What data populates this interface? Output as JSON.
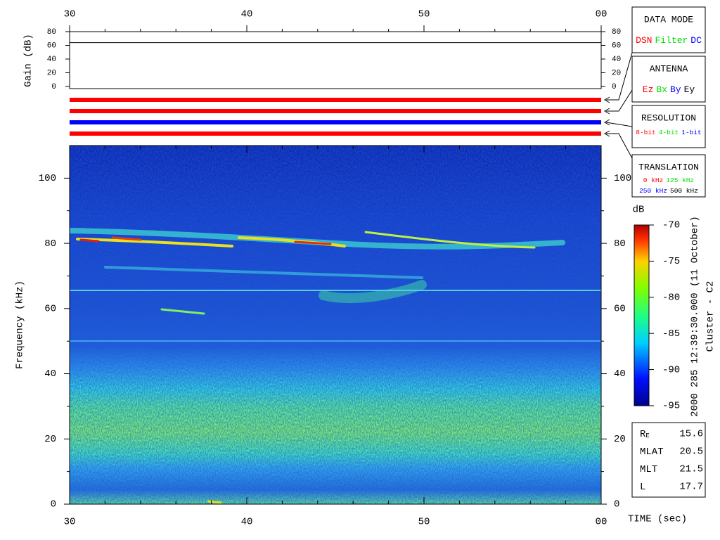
{
  "chart_data": [
    {
      "type": "line",
      "ylabel": "Gain (dB)",
      "xlim": [
        30,
        60
      ],
      "xticks": [
        30,
        40,
        50,
        {
          "value": 60,
          "label": "00"
        }
      ],
      "xminorticks": [
        32,
        34,
        36,
        38,
        42,
        44,
        46,
        48,
        52,
        54,
        56,
        58
      ],
      "ylim": [
        0,
        80
      ],
      "yticks": [
        0,
        20,
        40,
        60,
        80
      ],
      "x": [
        30,
        60
      ],
      "series": [
        {
          "color": "#000000",
          "values": [
            64,
            64
          ]
        }
      ],
      "mode_bars": [
        "#ff0000",
        "#ff0000",
        "#0000ff",
        "#ff0000"
      ]
    },
    {
      "type": "heatmap",
      "ylabel": "Frequency (kHz)",
      "xlabel": "TIME (sec)",
      "xlim": [
        30,
        60
      ],
      "xticks": [
        30,
        40,
        50,
        {
          "value": 60,
          "label": "00"
        }
      ],
      "xminorticks": [
        32,
        34,
        36,
        38,
        42,
        44,
        46,
        48,
        52,
        54,
        56,
        58
      ],
      "ylim": [
        0,
        110
      ],
      "yticks": [
        0,
        20,
        40,
        60,
        80,
        100
      ],
      "yminorticks": [
        10,
        30,
        50,
        70,
        90
      ],
      "colorbar": {
        "label": "dB",
        "zlim": [
          -95,
          -70
        ],
        "zticks": [
          -95,
          -90,
          -85,
          -80,
          -75,
          -70
        ]
      }
    }
  ],
  "legend_boxes": [
    {
      "title": "DATA MODE",
      "rows": [
        [
          {
            "text": "DSN",
            "color": "#ff0000"
          },
          {
            "text": "Filter",
            "color": "#00dd00"
          },
          {
            "text": "DC",
            "color": "#0000ff"
          }
        ]
      ]
    },
    {
      "title": "ANTENNA",
      "rows": [
        [
          {
            "text": "Ez",
            "color": "#ff0000"
          },
          {
            "text": "Bx",
            "color": "#00dd00"
          },
          {
            "text": "By",
            "color": "#0000ff"
          },
          {
            "text": "Ey",
            "color": "#000000"
          }
        ]
      ]
    },
    {
      "title": "RESOLUTION",
      "rows": [
        [
          {
            "text": "8-bit",
            "color": "#ff0000"
          },
          {
            "text": "4-bit",
            "color": "#00dd00"
          },
          {
            "text": "1-bit",
            "color": "#0000ff"
          }
        ]
      ]
    },
    {
      "title": "TRANSLATION",
      "rows": [
        [
          {
            "text": "0 kHz",
            "color": "#ff0000"
          },
          {
            "text": "125 kHz",
            "color": "#00dd00"
          }
        ],
        [
          {
            "text": "250 kHz",
            "color": "#0000ff"
          },
          {
            "text": "500 kHz",
            "color": "#000000"
          }
        ]
      ]
    }
  ],
  "caption": [
    "2000 285 12:39:30.000 (11 October)",
    "Cluster - C2"
  ],
  "ephemeris": [
    {
      "label": "R",
      "sub": "E",
      "value": "15.6"
    },
    {
      "label": "MLAT",
      "value": "20.5"
    },
    {
      "label": "MLT",
      "value": "21.5"
    },
    {
      "label": "L",
      "value": "17.7"
    }
  ]
}
